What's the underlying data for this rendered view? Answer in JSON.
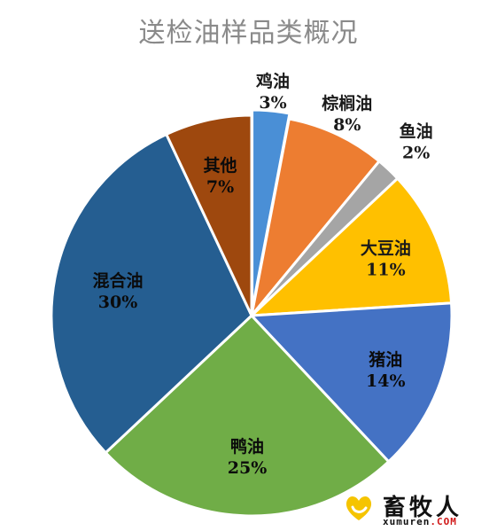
{
  "chart_data": {
    "type": "pie",
    "title": "送检油样品类概况",
    "slices": [
      {
        "label": "鸡油",
        "value": 3,
        "value_text": "3%",
        "color": "#4a8fd6"
      },
      {
        "label": "棕榈油",
        "value": 8,
        "value_text": "8%",
        "color": "#ed7d31"
      },
      {
        "label": "鱼油",
        "value": 2,
        "value_text": "2%",
        "color": "#a5a5a5"
      },
      {
        "label": "大豆油",
        "value": 11,
        "value_text": "11%",
        "color": "#ffc000"
      },
      {
        "label": "猪油",
        "value": 14,
        "value_text": "14%",
        "color": "#4472c4"
      },
      {
        "label": "鸭油",
        "value": 25,
        "value_text": "25%",
        "color": "#70ad47"
      },
      {
        "label": "混合油",
        "value": 30,
        "value_text": "30%",
        "color": "#255e91"
      },
      {
        "label": "其他",
        "value": 7,
        "value_text": "7%",
        "color": "#9e480e"
      }
    ],
    "legend": "none"
  },
  "watermark": {
    "brand": "畜牧人",
    "url_main": "xumuren",
    "url_suffix": ".COM",
    "heart_color": "#f5c400"
  }
}
